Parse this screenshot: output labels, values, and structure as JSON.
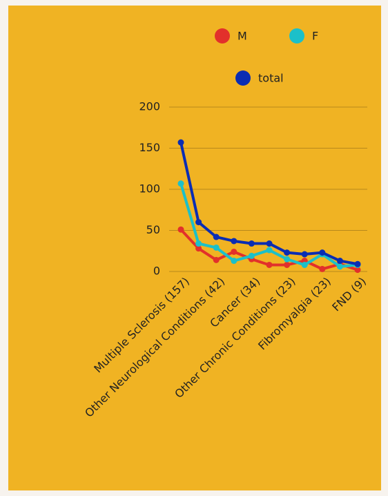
{
  "chart_data": {
    "type": "line",
    "categories": [
      "Multiple Sclerosis (157)",
      null,
      "Other Neurological Conditions (42)",
      null,
      "Cancer (34)",
      null,
      "Other Chronic Conditions (23)",
      null,
      "Fibromyalgia (23)",
      null,
      "FND (9)"
    ],
    "series": [
      {
        "name": "M",
        "color": "#e2302b",
        "values": [
          51,
          28,
          14,
          24,
          15,
          8,
          8,
          13,
          3,
          9,
          2
        ]
      },
      {
        "name": "F",
        "color": "#1cc0c9",
        "values": [
          107,
          34,
          29,
          13,
          19,
          26,
          15,
          8,
          21,
          6,
          8
        ]
      },
      {
        "name": "total",
        "color": "#0b2db3",
        "values": [
          157,
          60,
          42,
          37,
          34,
          34,
          23,
          21,
          23,
          13,
          9
        ]
      }
    ],
    "ylim": [
      0,
      200
    ],
    "yticks": [
      0,
      50,
      100,
      150,
      200
    ],
    "grid": true
  }
}
